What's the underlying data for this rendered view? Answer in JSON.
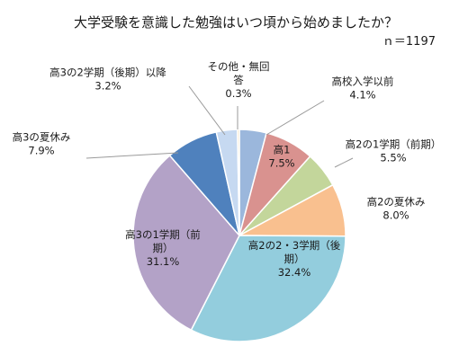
{
  "chart_data": {
    "type": "pie",
    "title": "大学受験を意識した勉強はいつ頃から始めましたか？",
    "sample_label": "ｎ＝1197",
    "slices": [
      {
        "label_lines": [
          "高校入学以前"
        ],
        "value_label": "4.1%",
        "value": 4.1,
        "color": "#9bb7dc"
      },
      {
        "label_lines": [
          "高1"
        ],
        "value_label": "7.5%",
        "value": 7.5,
        "color": "#d9928f"
      },
      {
        "label_lines": [
          "高2の1学期（前期）"
        ],
        "value_label": "5.5%",
        "value": 5.5,
        "color": "#c3d69b"
      },
      {
        "label_lines": [
          "高2の夏休み"
        ],
        "value_label": "8.0%",
        "value": 8.0,
        "color": "#f9c08f"
      },
      {
        "label_lines": [
          "高2の2・3学期（後",
          "期）"
        ],
        "value_label": "32.4%",
        "value": 32.4,
        "color": "#93cddd"
      },
      {
        "label_lines": [
          "高3の1学期（前",
          "期）"
        ],
        "value_label": "31.1%",
        "value": 31.1,
        "color": "#b3a2c7"
      },
      {
        "label_lines": [
          "高3の夏休み"
        ],
        "value_label": "7.9%",
        "value": 7.9,
        "color": "#4f81bd"
      },
      {
        "label_lines": [
          "高3の2学期（後期）以降"
        ],
        "value_label": "3.2%",
        "value": 3.2,
        "color": "#c6d9f1"
      },
      {
        "label_lines": [
          "その他・無回",
          "答"
        ],
        "value_label": "0.3%",
        "value": 0.3,
        "color": "#f5deb3"
      }
    ]
  }
}
